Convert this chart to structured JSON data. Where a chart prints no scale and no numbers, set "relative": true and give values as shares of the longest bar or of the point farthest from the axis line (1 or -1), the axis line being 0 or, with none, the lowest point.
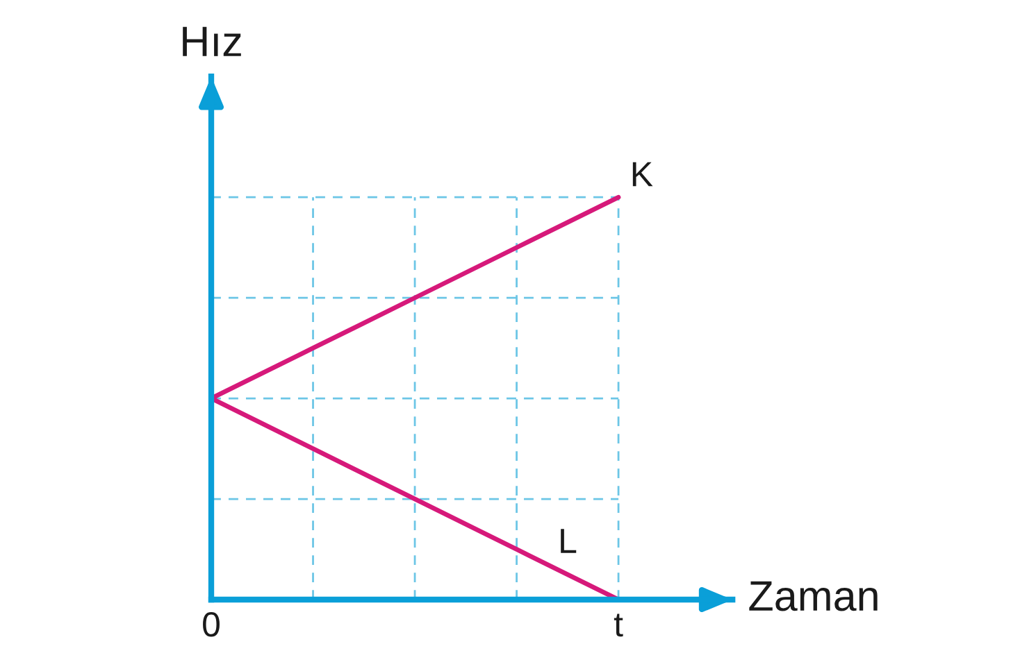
{
  "chart_data": {
    "type": "line",
    "xlabel": "Zaman",
    "ylabel": "Hız",
    "relative": true,
    "categories": [
      "0",
      null,
      null,
      null,
      "t"
    ],
    "series": [
      {
        "name": "K",
        "color": "#d6197a",
        "values": [
          0.5,
          0.625,
          0.75,
          0.875,
          1
        ]
      },
      {
        "name": "L",
        "color": "#d6197a",
        "values": [
          0.5,
          0.375,
          0.25,
          0.125,
          0
        ]
      }
    ],
    "grid": "x",
    "ref_lines": [
      {
        "axis": "y",
        "value": 0.25,
        "color": "#6cc6e6",
        "line_style": "dashed"
      },
      {
        "axis": "y",
        "value": 0.5,
        "color": "#6cc6e6",
        "line_style": "dashed"
      },
      {
        "axis": "y",
        "value": 0.75,
        "color": "#6cc6e6",
        "line_style": "dashed"
      }
    ],
    "line_style": "solid"
  }
}
